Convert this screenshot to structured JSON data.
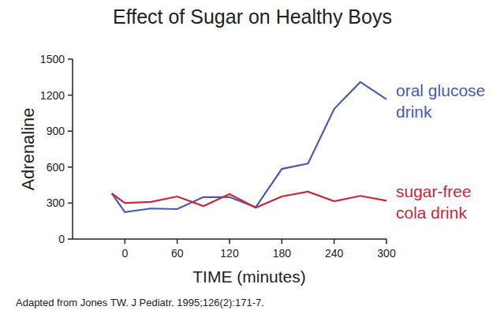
{
  "chart_data": {
    "type": "line",
    "title": "Effect of Sugar on Healthy Boys",
    "x_label": "TIME (minutes)",
    "y_label": "Adrenaline",
    "source": "Adapted from Jones TW. J Pediatr. 1995;126(2):171-7.",
    "x": [
      -15,
      0,
      30,
      60,
      90,
      120,
      150,
      180,
      210,
      240,
      270,
      300
    ],
    "series": [
      {
        "name": "oral glucose drink",
        "color": "#4a5bb0",
        "values": [
          380,
          225,
          255,
          250,
          350,
          350,
          265,
          585,
          630,
          1085,
          1310,
          1165
        ]
      },
      {
        "name": "sugar-free cola drink",
        "color": "#c8283c",
        "values": [
          380,
          300,
          310,
          355,
          275,
          375,
          262,
          355,
          395,
          315,
          360,
          320
        ]
      }
    ],
    "xlim": [
      -60,
      300
    ],
    "xticks": [
      0,
      60,
      120,
      180,
      240,
      300
    ],
    "ylim": [
      0,
      1500
    ],
    "yticks": [
      0,
      300,
      600,
      900,
      1200,
      1500
    ],
    "grid": false
  }
}
